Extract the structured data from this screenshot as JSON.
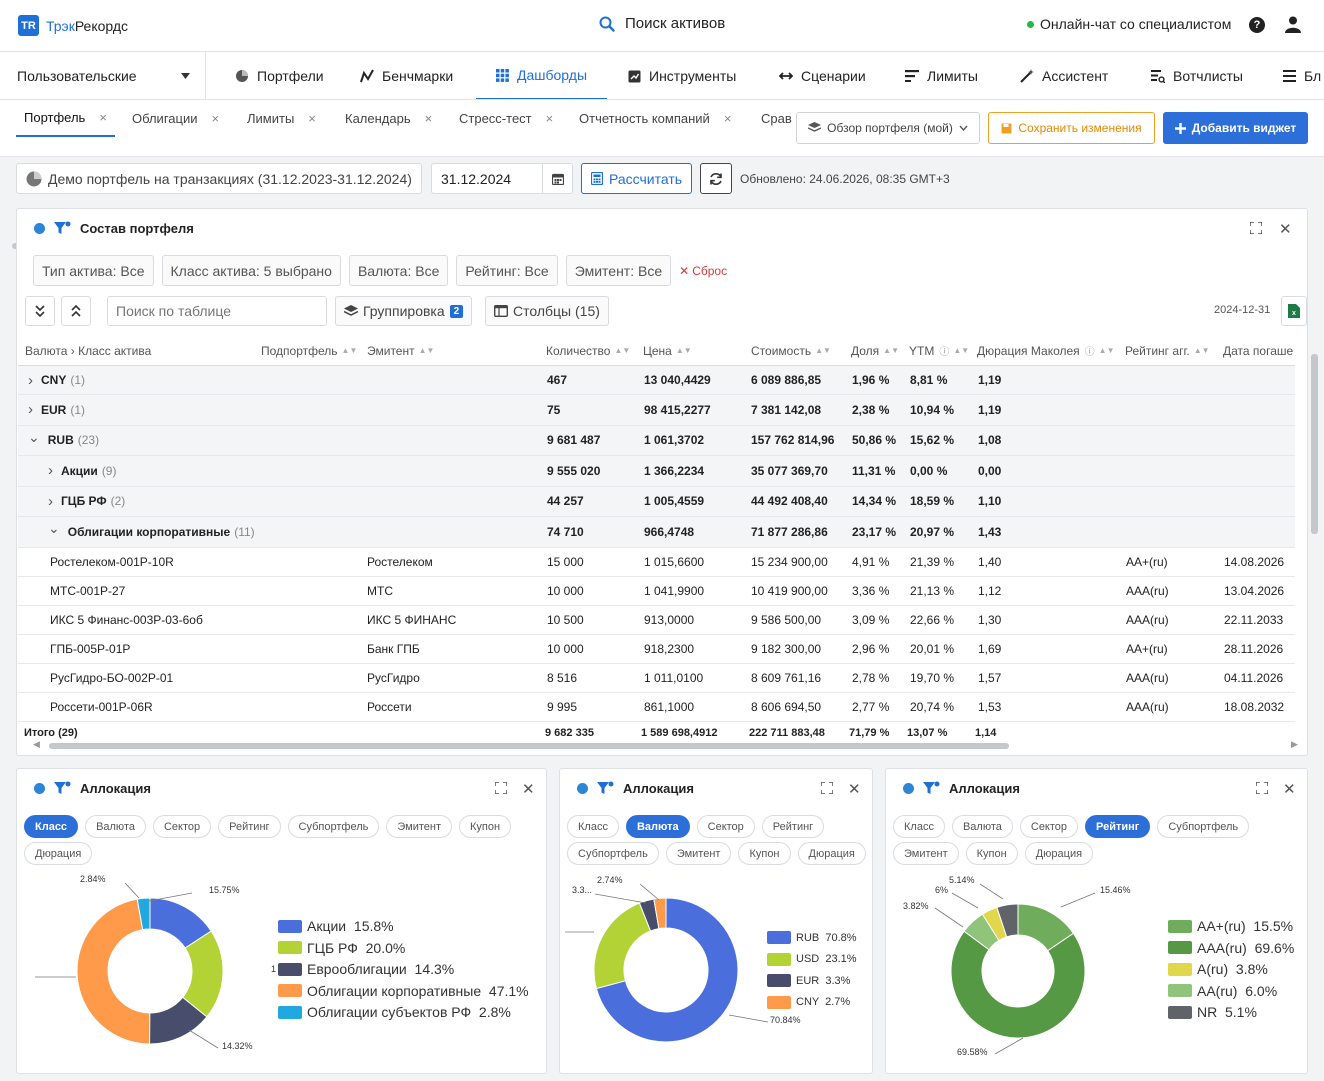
{
  "app": {
    "logo_mark": "TR",
    "brand_a": "Трэк",
    "brand_b": "Рекордс",
    "search": "Поиск активов",
    "chat": "Онлайн-чат со специалистом",
    "help": "?"
  },
  "nav": {
    "selector": "Пользовательские",
    "items": [
      "Портфели",
      "Бенчмарки",
      "Дашборды",
      "Инструменты",
      "Сценарии",
      "Лимиты",
      "Ассистент",
      "Вотчлисты",
      "Бл"
    ],
    "active": "Дашборды"
  },
  "tabs": {
    "items": [
      "Портфель",
      "Облигации",
      "Лимиты",
      "Календарь",
      "Стресс-тест",
      "Отчетность компаний",
      "Срав"
    ],
    "active": "Портфель",
    "close": "×"
  },
  "actions": {
    "overview": "Обзор портфеля (мой)",
    "save": "Сохранить изменения",
    "add": "Добавить виджет"
  },
  "subbar": {
    "portfolio": "Демо портфель на транзакциях (31.12.2023-31.12.2024)",
    "date": "31.12.2024",
    "calc": "Рассчитать",
    "updated": "Обновлено: 24.06.2026, 08:35 GMT+3"
  },
  "composition": {
    "title": "Состав портфеля",
    "filters": [
      "Тип актива: Все",
      "Класс актива: 5 выбрано",
      "Валюта: Все",
      "Рейтинг: Все",
      "Эмитент: Все"
    ],
    "reset": "Сброс",
    "search_placeholder": "Поиск по таблице",
    "grouping": "Группировка",
    "grouping_count": "2",
    "columns": "Столбцы (15)",
    "report_date": "2024-12-31",
    "headers": [
      "Валюта › Класс актива",
      "Подпортфель",
      "Эмитент",
      "Количество",
      "Цена",
      "Стоимость",
      "Доля",
      "YTM",
      "Дюрация Маколея",
      "Рейтинг агг.",
      "Дата погаше"
    ],
    "rows": [
      {
        "level": 0,
        "open": false,
        "name": "CNY",
        "count": "(1)",
        "issuer": "",
        "qty": "467",
        "price": "13 040,4429",
        "value": "6 089 886,85",
        "share": "1,96 %",
        "ytm": "8,81 %",
        "dur": "1,19",
        "rating": "",
        "maturity": ""
      },
      {
        "level": 0,
        "open": false,
        "name": "EUR",
        "count": "(1)",
        "issuer": "",
        "qty": "75",
        "price": "98 415,2277",
        "value": "7 381 142,08",
        "share": "2,38 %",
        "ytm": "10,94 %",
        "dur": "1,19",
        "rating": "",
        "maturity": ""
      },
      {
        "level": 0,
        "open": true,
        "name": "RUB",
        "count": "(23)",
        "issuer": "",
        "qty": "9 681 487",
        "price": "1 061,3702",
        "value": "157 762 814,96",
        "share": "50,86 %",
        "ytm": "15,62 %",
        "dur": "1,08",
        "rating": "",
        "maturity": ""
      },
      {
        "level": 1,
        "open": false,
        "name": "Акции",
        "count": "(9)",
        "issuer": "",
        "qty": "9 555 020",
        "price": "1 366,2234",
        "value": "35 077 369,70",
        "share": "11,31 %",
        "ytm": "0,00 %",
        "dur": "0,00",
        "rating": "",
        "maturity": ""
      },
      {
        "level": 1,
        "open": false,
        "name": "ГЦБ РФ",
        "count": "(2)",
        "issuer": "",
        "qty": "44 257",
        "price": "1 005,4559",
        "value": "44 492 408,40",
        "share": "14,34 %",
        "ytm": "18,59 %",
        "dur": "1,10",
        "rating": "",
        "maturity": ""
      },
      {
        "level": 1,
        "open": true,
        "name": "Облигации корпоративные",
        "count": "(11)",
        "issuer": "",
        "qty": "74 710",
        "price": "966,4748",
        "value": "71 877 286,86",
        "share": "23,17 %",
        "ytm": "20,97 %",
        "dur": "1,43",
        "rating": "",
        "maturity": ""
      },
      {
        "level": 2,
        "open": false,
        "name": "Ростелеком-001P-10R",
        "count": "",
        "issuer": "Ростелеком",
        "qty": "15 000",
        "price": "1 015,6600",
        "value": "15 234 900,00",
        "share": "4,91 %",
        "ytm": "21,39 %",
        "dur": "1,40",
        "rating": "AA+(ru)",
        "maturity": "14.08.2026"
      },
      {
        "level": 2,
        "open": false,
        "name": "МТС-001P-27",
        "count": "",
        "issuer": "МТС",
        "qty": "10 000",
        "price": "1 041,9900",
        "value": "10 419 900,00",
        "share": "3,36 %",
        "ytm": "21,13 %",
        "dur": "1,12",
        "rating": "AAA(ru)",
        "maturity": "13.04.2026"
      },
      {
        "level": 2,
        "open": false,
        "name": "ИКС 5 Финанс-003Р-03-6об",
        "count": "",
        "issuer": "ИКС 5 ФИНАНС",
        "qty": "10 500",
        "price": "913,0000",
        "value": "9 586 500,00",
        "share": "3,09 %",
        "ytm": "22,66 %",
        "dur": "1,30",
        "rating": "AAA(ru)",
        "maturity": "22.11.2033"
      },
      {
        "level": 2,
        "open": false,
        "name": "ГПБ-005Р-01Р",
        "count": "",
        "issuer": "Банк ГПБ",
        "qty": "10 000",
        "price": "918,2300",
        "value": "9 182 300,00",
        "share": "2,96 %",
        "ytm": "20,01 %",
        "dur": "1,69",
        "rating": "AA+(ru)",
        "maturity": "28.11.2026"
      },
      {
        "level": 2,
        "open": false,
        "name": "РусГидро-БО-002P-01",
        "count": "",
        "issuer": "РусГидро",
        "qty": "8 516",
        "price": "1 011,0100",
        "value": "8 609 761,16",
        "share": "2,78 %",
        "ytm": "19,70 %",
        "dur": "1,57",
        "rating": "AAA(ru)",
        "maturity": "04.11.2026"
      },
      {
        "level": 2,
        "open": false,
        "name": "Россети-001P-06R",
        "count": "",
        "issuer": "Россети",
        "qty": "9 995",
        "price": "861,1000",
        "value": "8 606 694,50",
        "share": "2,77 %",
        "ytm": "20,74 %",
        "dur": "1,53",
        "rating": "AAA(ru)",
        "maturity": "18.08.2032"
      }
    ],
    "total": {
      "label": "Итого (29)",
      "qty": "9 682 335",
      "price": "1 589 698,4912",
      "value": "222 711 883,48",
      "share": "71,79 %",
      "ytm": "13,07 %",
      "dur": "1,14"
    }
  },
  "allocation_panels": [
    {
      "title": "Аллокация",
      "chips": [
        "Класс",
        "Валюта",
        "Сектор",
        "Рейтинг",
        "Субпортфель",
        "Эмитент",
        "Купон",
        "Дюрация"
      ],
      "active": "Класс"
    },
    {
      "title": "Аллокация",
      "chips": [
        "Класс",
        "Валюта",
        "Сектор",
        "Рейтинг",
        "Субпортфель",
        "Эмитент",
        "Купон",
        "Дюрация"
      ],
      "active": "Валюта"
    },
    {
      "title": "Аллокация",
      "chips": [
        "Класс",
        "Валюта",
        "Сектор",
        "Рейтинг",
        "Субпортфель",
        "Эмитент",
        "Купон",
        "Дюрация"
      ],
      "active": "Рейтинг"
    }
  ],
  "chart_data": [
    {
      "type": "pie",
      "donut": true,
      "series": [
        {
          "name": "Акции",
          "value": 15.8,
          "label": "15.75%",
          "color": "#4a6fdc"
        },
        {
          "name": "ГЦБ РФ",
          "value": 20.0,
          "label": "",
          "color": "#b2d235"
        },
        {
          "name": "Еврооблигации",
          "value": 14.3,
          "label": "14.32%",
          "color": "#474d6b"
        },
        {
          "name": "Облигации корпоративные",
          "value": 47.1,
          "label": "",
          "color": "#ff9a4a"
        },
        {
          "name": "Облигации субъектов РФ",
          "value": 2.8,
          "label": "2.84%",
          "color": "#20a8e0"
        }
      ],
      "legend": [
        "Акции  15.8%",
        "ГЦБ РФ  20.0%",
        "Еврооблигации  14.3%",
        "Облигации корпоративные  47.1%",
        "Облигации субъектов РФ  2.8%"
      ],
      "extra_labels": [
        "1"
      ]
    },
    {
      "type": "pie",
      "donut": true,
      "series": [
        {
          "name": "RUB",
          "value": 70.8,
          "label": "70.84%",
          "color": "#4a6fdc"
        },
        {
          "name": "USD",
          "value": 23.1,
          "label": "",
          "color": "#b2d235"
        },
        {
          "name": "EUR",
          "value": 3.3,
          "label": "3.3...",
          "color": "#474d6b"
        },
        {
          "name": "CNY",
          "value": 2.7,
          "label": "2.74%",
          "color": "#ff9a4a"
        }
      ],
      "legend": [
        "RUB  70.8%",
        "USD  23.1%",
        "EUR  3.3%",
        "CNY  2.7%"
      ]
    },
    {
      "type": "pie",
      "donut": true,
      "series": [
        {
          "name": "AA+(ru)",
          "value": 15.5,
          "label": "15.46%",
          "color": "#6fad5c"
        },
        {
          "name": "AAA(ru)",
          "value": 69.6,
          "label": "69.58%",
          "color": "#559944"
        },
        {
          "name": "A(ru)",
          "value": 3.8,
          "label": "3.82%",
          "color": "#e0d84a"
        },
        {
          "name": "AA(ru)",
          "value": 6.0,
          "label": "6%",
          "color": "#8fc47a"
        },
        {
          "name": "NR",
          "value": 5.1,
          "label": "5.14%",
          "color": "#606468"
        }
      ],
      "legend": [
        "AA+(ru)  15.5%",
        "AAA(ru)  69.6%",
        "A(ru)  3.8%",
        "AA(ru)  6.0%",
        "NR  5.1%"
      ]
    }
  ]
}
